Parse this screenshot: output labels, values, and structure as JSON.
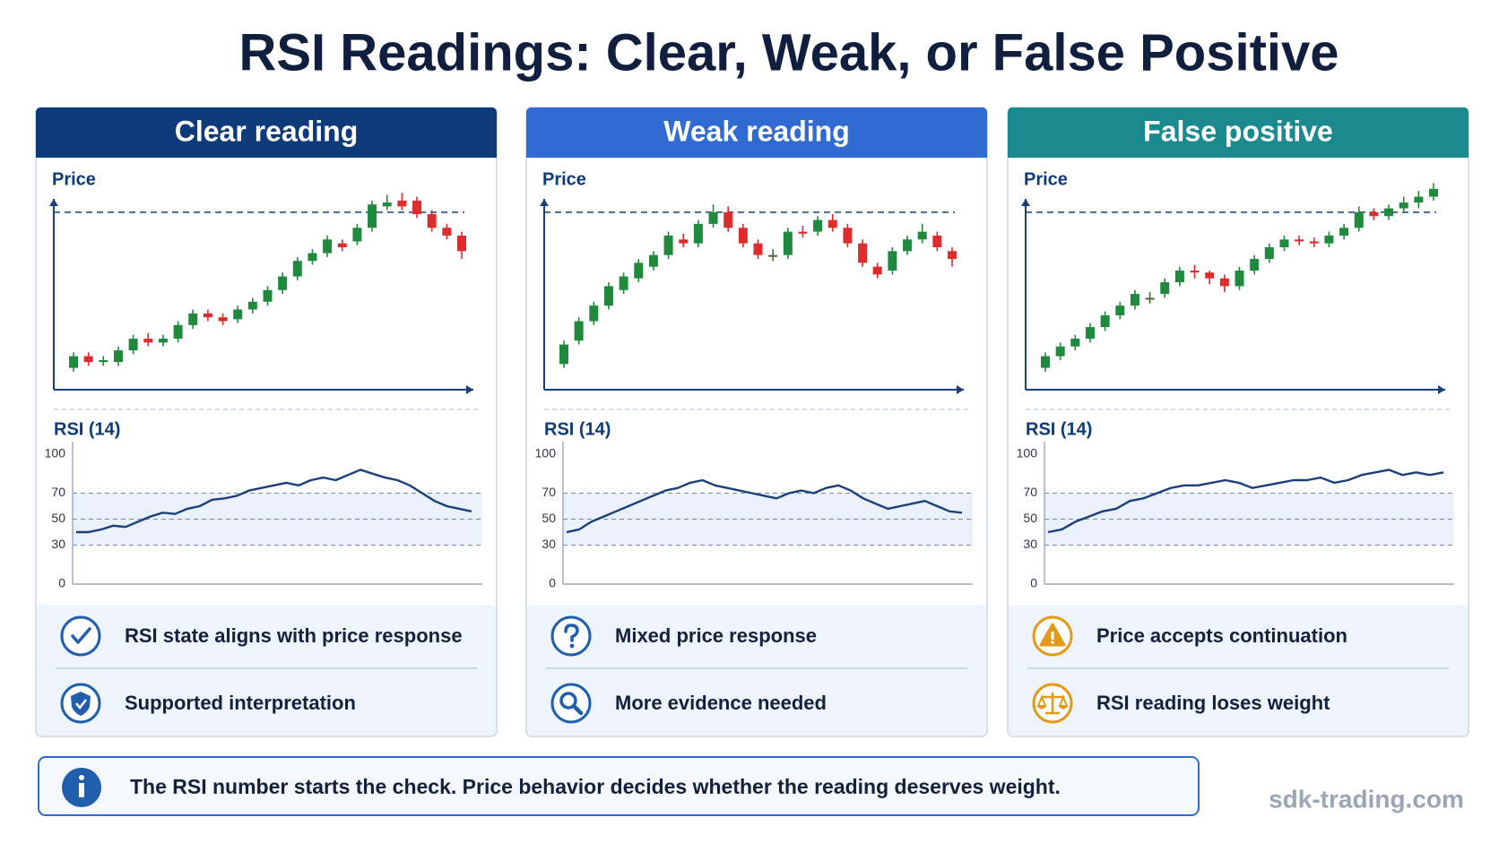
{
  "title": "RSI Readings: Clear, Weak, or False Positive",
  "panels": [
    {
      "header": "Clear reading",
      "header_color": "#0d3b7a",
      "price": {
        "type": "candlestick",
        "title": "Price",
        "ylim": [
          0,
          105
        ],
        "level": 88,
        "open": [
          8,
          14,
          11,
          11,
          17,
          23,
          21,
          23,
          30,
          36,
          34,
          33,
          38,
          42,
          48,
          55,
          63,
          67,
          72,
          73,
          80,
          91,
          94,
          94,
          87,
          80,
          76
        ],
        "close": [
          14,
          11,
          12,
          17,
          23,
          21,
          23,
          30,
          36,
          34,
          32,
          38,
          42,
          48,
          55,
          63,
          67,
          74,
          70,
          80,
          92,
          93,
          91,
          87,
          80,
          76,
          68
        ],
        "high": [
          16,
          16,
          14,
          19,
          25,
          26,
          25,
          32,
          38,
          38,
          36,
          40,
          44,
          50,
          57,
          65,
          69,
          76,
          74,
          82,
          94,
          97,
          98,
          96,
          89,
          82,
          78
        ],
        "low": [
          6,
          9,
          9,
          9,
          15,
          19,
          19,
          21,
          28,
          32,
          30,
          31,
          36,
          40,
          46,
          53,
          61,
          65,
          68,
          71,
          78,
          89,
          89,
          85,
          78,
          74,
          64
        ]
      },
      "rsi": {
        "type": "line",
        "title": "RSI (14)",
        "ylim": [
          0,
          100
        ],
        "yticks": [
          0,
          30,
          50,
          70,
          100
        ],
        "band": [
          30,
          70
        ],
        "color": "#1b3f7a",
        "values": [
          40,
          40,
          42,
          45,
          44,
          48,
          52,
          55,
          54,
          58,
          60,
          65,
          66,
          68,
          72,
          74,
          76,
          78,
          76,
          80,
          82,
          80,
          84,
          88,
          85,
          82,
          80,
          76,
          70,
          64,
          60,
          58,
          56
        ]
      },
      "icon_color": "#1f5fae",
      "notes": [
        "RSI state aligns with price response",
        "Supported interpretation"
      ]
    },
    {
      "header": "Weak reading",
      "header_color": "#2f6bd0",
      "price": {
        "type": "candlestick",
        "title": "Price",
        "ylim": [
          0,
          105
        ],
        "level": 88,
        "open": [
          10,
          22,
          32,
          40,
          48,
          54,
          60,
          66,
          74,
          72,
          82,
          88,
          80,
          72,
          66,
          66,
          78,
          78,
          84,
          80,
          72,
          60,
          58,
          68,
          74,
          76,
          68
        ],
        "close": [
          20,
          32,
          40,
          50,
          55,
          62,
          66,
          76,
          72,
          82,
          88,
          80,
          72,
          66,
          66,
          78,
          77,
          84,
          80,
          72,
          62,
          56,
          68,
          74,
          78,
          70,
          64
        ],
        "high": [
          22,
          34,
          42,
          52,
          57,
          64,
          68,
          78,
          77,
          84,
          92,
          91,
          82,
          74,
          69,
          80,
          81,
          86,
          87,
          82,
          74,
          62,
          70,
          76,
          82,
          78,
          70
        ],
        "low": [
          8,
          20,
          30,
          38,
          46,
          52,
          58,
          64,
          70,
          70,
          80,
          78,
          70,
          64,
          63,
          64,
          75,
          76,
          78,
          70,
          60,
          54,
          56,
          66,
          72,
          68,
          60
        ]
      },
      "rsi": {
        "type": "line",
        "title": "RSI (14)",
        "ylim": [
          0,
          100
        ],
        "yticks": [
          0,
          30,
          50,
          70,
          100
        ],
        "band": [
          30,
          70
        ],
        "color": "#1b3f7a",
        "values": [
          40,
          42,
          48,
          52,
          56,
          60,
          64,
          68,
          72,
          74,
          78,
          80,
          76,
          74,
          72,
          70,
          68,
          66,
          70,
          72,
          70,
          74,
          76,
          72,
          66,
          62,
          58,
          60,
          62,
          64,
          60,
          56,
          55
        ]
      },
      "icon_color": "#1f5fae",
      "notes": [
        "Mixed price response",
        "More evidence needed"
      ]
    },
    {
      "header": "False positive",
      "header_color": "#1a8a8f",
      "price": {
        "type": "candlestick",
        "title": "Price",
        "ylim": [
          0,
          105
        ],
        "level": 88,
        "open": [
          8,
          14,
          19,
          23,
          29,
          35,
          40,
          44,
          46,
          52,
          58,
          57,
          54,
          50,
          58,
          64,
          70,
          74,
          73,
          72,
          76,
          80,
          88,
          86,
          90,
          93,
          96
        ],
        "close": [
          14,
          19,
          23,
          29,
          35,
          40,
          46,
          44,
          52,
          58,
          57,
          54,
          50,
          58,
          64,
          70,
          74,
          73,
          72,
          76,
          80,
          88,
          86,
          90,
          93,
          96,
          100
        ],
        "high": [
          16,
          21,
          25,
          31,
          37,
          42,
          48,
          47,
          54,
          60,
          61,
          58,
          56,
          60,
          66,
          72,
          76,
          76,
          75,
          78,
          82,
          91,
          90,
          92,
          96,
          99,
          103
        ],
        "low": [
          6,
          12,
          17,
          21,
          27,
          33,
          38,
          41,
          44,
          50,
          54,
          51,
          47,
          48,
          56,
          62,
          68,
          71,
          70,
          70,
          74,
          78,
          84,
          84,
          88,
          90,
          94
        ]
      },
      "rsi": {
        "type": "line",
        "title": "RSI (14)",
        "ylim": [
          0,
          100
        ],
        "yticks": [
          0,
          30,
          50,
          70,
          100
        ],
        "band": [
          30,
          70
        ],
        "color": "#1b3f7a",
        "values": [
          40,
          42,
          48,
          52,
          56,
          58,
          64,
          66,
          70,
          74,
          76,
          76,
          78,
          80,
          78,
          74,
          76,
          78,
          80,
          80,
          82,
          78,
          80,
          84,
          86,
          88,
          84,
          86,
          84,
          86
        ]
      },
      "icon_color": "#e39a1a",
      "notes": [
        "Price accepts continuation",
        "RSI reading loses weight"
      ]
    }
  ],
  "footer": "The RSI number starts the check. Price behavior decides whether the reading deserves weight.",
  "watermark": "sdk-trading.com"
}
